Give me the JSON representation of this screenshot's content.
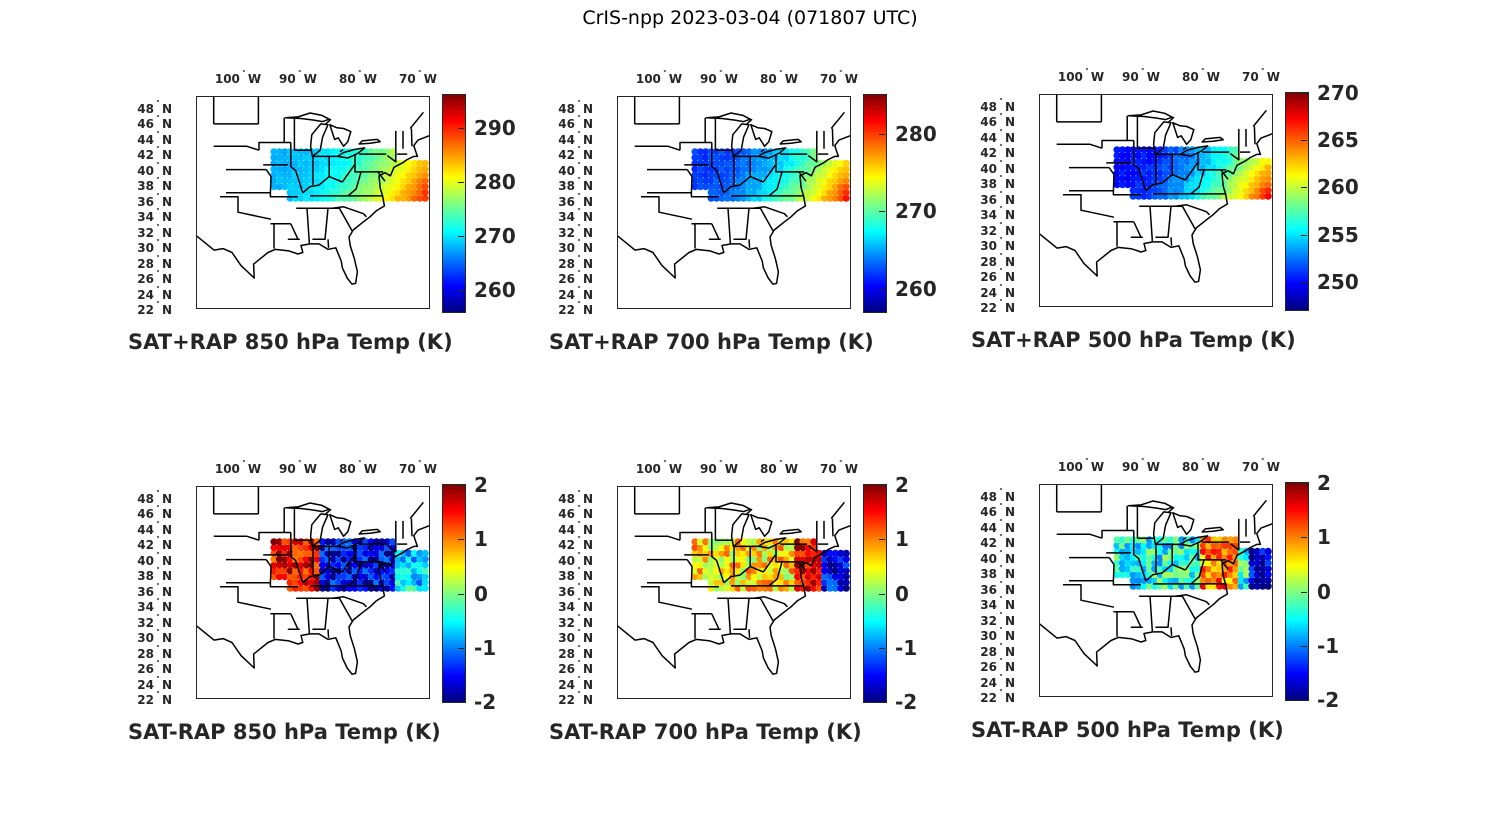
{
  "title": "CrIS-npp 2023-03-04 (071807 UTC)",
  "lon_ticks": [
    {
      "value": -100,
      "label": "100",
      "suffix": "W"
    },
    {
      "value": -90,
      "label": "90",
      "suffix": "W"
    },
    {
      "value": -80,
      "label": "80",
      "suffix": "W"
    },
    {
      "value": -70,
      "label": "70",
      "suffix": "W"
    }
  ],
  "lat_ticks": [
    {
      "value": 48,
      "label": "48",
      "suffix": "N"
    },
    {
      "value": 46,
      "label": "46",
      "suffix": "N"
    },
    {
      "value": 44,
      "label": "44",
      "suffix": "N"
    },
    {
      "value": 42,
      "label": "42",
      "suffix": "N"
    },
    {
      "value": 40,
      "label": "40",
      "suffix": "N"
    },
    {
      "value": 38,
      "label": "38",
      "suffix": "N"
    },
    {
      "value": 36,
      "label": "36",
      "suffix": "N"
    },
    {
      "value": 34,
      "label": "34",
      "suffix": "N"
    },
    {
      "value": 32,
      "label": "32",
      "suffix": "N"
    },
    {
      "value": 30,
      "label": "30",
      "suffix": "N"
    },
    {
      "value": 28,
      "label": "28",
      "suffix": "N"
    },
    {
      "value": 26,
      "label": "26",
      "suffix": "N"
    },
    {
      "value": 24,
      "label": "24",
      "suffix": "N"
    },
    {
      "value": 22,
      "label": "22",
      "suffix": "N"
    }
  ],
  "colormap": "jet",
  "panels": [
    {
      "title": "SAT+RAP 850 hPa Temp (K)",
      "kind": "sum",
      "level": "850",
      "clim": [
        256,
        296
      ],
      "ticks": [
        {
          "v": 260,
          "t": "260"
        },
        {
          "v": 270,
          "t": "270"
        },
        {
          "v": 280,
          "t": "280"
        },
        {
          "v": 290,
          "t": "290"
        }
      ]
    },
    {
      "title": "SAT+RAP 700 hPa Temp (K)",
      "kind": "sum",
      "level": "700",
      "clim": [
        257,
        285
      ],
      "ticks": [
        {
          "v": 260,
          "t": "260"
        },
        {
          "v": 270,
          "t": "270"
        },
        {
          "v": 280,
          "t": "280"
        }
      ]
    },
    {
      "title": "SAT+RAP 500 hPa Temp (K)",
      "kind": "sum",
      "level": "500",
      "clim": [
        247,
        270
      ],
      "ticks": [
        {
          "v": 250,
          "t": "250"
        },
        {
          "v": 255,
          "t": "255"
        },
        {
          "v": 260,
          "t": "260"
        },
        {
          "v": 265,
          "t": "265"
        },
        {
          "v": 270,
          "t": "270"
        }
      ]
    },
    {
      "title": "SAT-RAP 850 hPa Temp (K)",
      "kind": "diff",
      "level": "850",
      "clim": [
        -2,
        2
      ],
      "ticks": [
        {
          "v": -2,
          "t": "-2"
        },
        {
          "v": -1,
          "t": "-1"
        },
        {
          "v": 0,
          "t": "0"
        },
        {
          "v": 1,
          "t": "1"
        },
        {
          "v": 2,
          "t": "2"
        }
      ]
    },
    {
      "title": "SAT-RAP 700 hPa Temp (K)",
      "kind": "diff",
      "level": "700",
      "clim": [
        -2,
        2
      ],
      "ticks": [
        {
          "v": -2,
          "t": "-2"
        },
        {
          "v": -1,
          "t": "-1"
        },
        {
          "v": 0,
          "t": "0"
        },
        {
          "v": 1,
          "t": "1"
        },
        {
          "v": 2,
          "t": "2"
        }
      ]
    },
    {
      "title": "SAT-RAP 500 hPa Temp (K)",
      "kind": "diff",
      "level": "500",
      "clim": [
        -2,
        2
      ],
      "ticks": [
        {
          "v": -2,
          "t": "-2"
        },
        {
          "v": -1,
          "t": "-1"
        },
        {
          "v": 0,
          "t": "0"
        },
        {
          "v": 1,
          "t": "1"
        },
        {
          "v": 2,
          "t": "2"
        }
      ]
    }
  ]
}
